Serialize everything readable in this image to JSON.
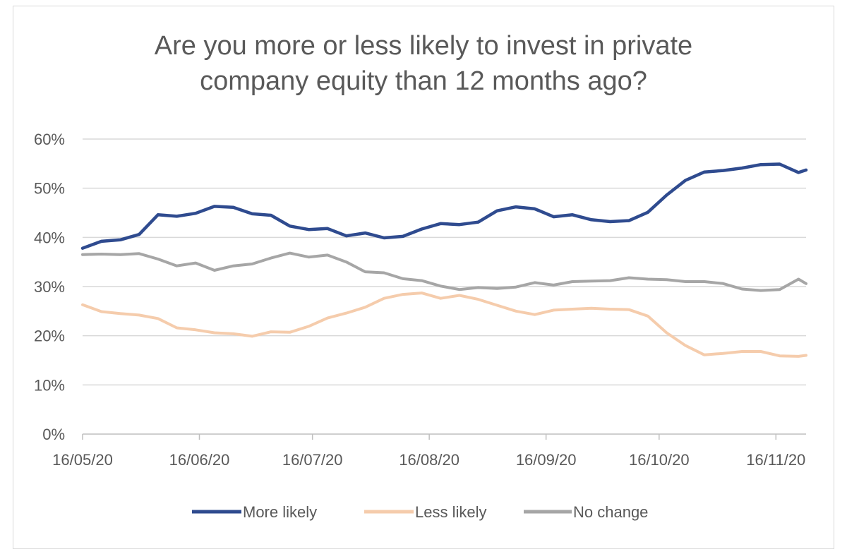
{
  "chart_data": {
    "type": "line",
    "title_lines": [
      "Are you more or less likely to invest in private",
      "company equity than 12 months ago?"
    ],
    "xlabel": "",
    "ylabel": "",
    "x_tick_labels": [
      "16/05/20",
      "16/06/20",
      "16/07/20",
      "16/08/20",
      "16/09/20",
      "16/10/20",
      "16/11/20"
    ],
    "y_tick_labels": [
      "0%",
      "10%",
      "20%",
      "30%",
      "40%",
      "50%",
      "60%"
    ],
    "ylim": [
      0,
      60
    ],
    "xlim": [
      "2020-05-16",
      "2020-11-24"
    ],
    "grid": "horizontal",
    "legend_position": "bottom",
    "x": [
      "2020-05-16",
      "2020-05-21",
      "2020-05-26",
      "2020-05-31",
      "2020-06-05",
      "2020-06-10",
      "2020-06-15",
      "2020-06-20",
      "2020-06-25",
      "2020-06-30",
      "2020-07-05",
      "2020-07-10",
      "2020-07-15",
      "2020-07-20",
      "2020-07-25",
      "2020-07-30",
      "2020-08-04",
      "2020-08-09",
      "2020-08-14",
      "2020-08-19",
      "2020-08-24",
      "2020-08-29",
      "2020-09-03",
      "2020-09-08",
      "2020-09-13",
      "2020-09-18",
      "2020-09-23",
      "2020-09-28",
      "2020-10-03",
      "2020-10-08",
      "2020-10-13",
      "2020-10-18",
      "2020-10-23",
      "2020-10-28",
      "2020-11-02",
      "2020-11-07",
      "2020-11-12",
      "2020-11-17",
      "2020-11-22",
      "2020-11-24"
    ],
    "series": [
      {
        "name": "More likely",
        "color": "#2f4b8f",
        "values": [
          37.8,
          39.2,
          39.5,
          40.6,
          44.6,
          44.3,
          44.9,
          46.3,
          46.1,
          44.8,
          44.5,
          42.3,
          41.6,
          41.8,
          40.3,
          40.9,
          39.9,
          40.2,
          41.7,
          42.8,
          42.6,
          43.1,
          45.4,
          46.2,
          45.8,
          44.2,
          44.6,
          43.6,
          43.2,
          43.4,
          45.1,
          48.6,
          51.6,
          53.3,
          53.6,
          54.1,
          54.8,
          54.9,
          53.2,
          53.7
        ]
      },
      {
        "name": "Less likely",
        "color": "#f5ccac",
        "values": [
          26.3,
          24.9,
          24.5,
          24.2,
          23.5,
          21.6,
          21.2,
          20.6,
          20.4,
          19.9,
          20.8,
          20.7,
          21.9,
          23.6,
          24.6,
          25.8,
          27.6,
          28.4,
          28.7,
          27.6,
          28.2,
          27.4,
          26.2,
          25.0,
          24.3,
          25.2,
          25.4,
          25.6,
          25.4,
          25.3,
          24.0,
          20.6,
          18.0,
          16.1,
          16.4,
          16.8,
          16.8,
          15.9,
          15.8,
          16.0
        ]
      },
      {
        "name": "No change",
        "color": "#a6a6a6",
        "values": [
          36.5,
          36.6,
          36.5,
          36.7,
          35.6,
          34.2,
          34.8,
          33.3,
          34.2,
          34.6,
          35.8,
          36.8,
          36.0,
          36.4,
          35.0,
          33.0,
          32.8,
          31.6,
          31.2,
          30.1,
          29.4,
          29.8,
          29.6,
          29.9,
          30.8,
          30.3,
          31.0,
          31.1,
          31.2,
          31.8,
          31.5,
          31.4,
          31.0,
          31.0,
          30.6,
          29.5,
          29.2,
          29.4,
          31.5,
          30.6
        ]
      }
    ]
  }
}
